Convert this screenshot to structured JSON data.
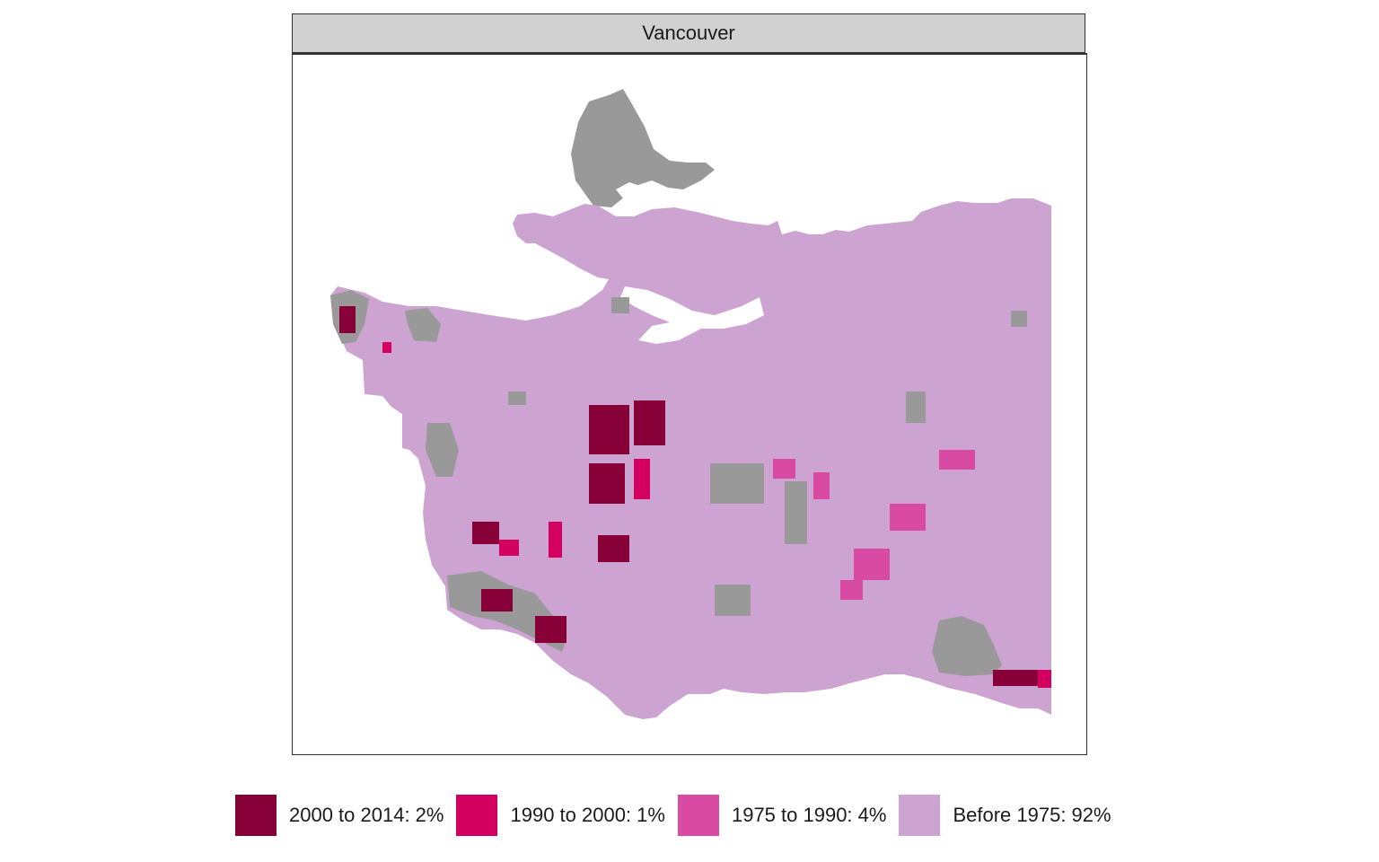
{
  "panel": {
    "title": "Vancouver"
  },
  "map": {
    "background_color": "#999999"
  },
  "legend": {
    "items": [
      {
        "label": "2000 to 2014: 2%",
        "color": "#870038",
        "key": "2000-2014",
        "share": 0.02
      },
      {
        "label": "1990 to 2000: 1%",
        "color": "#d3005f",
        "key": "1990-2000",
        "share": 0.01
      },
      {
        "label": "1975 to 1990: 4%",
        "color": "#d94aa3",
        "key": "1975-1990",
        "share": 0.04
      },
      {
        "label": "Before 1975: 92%",
        "color": "#cca3d1",
        "key": "before-1975",
        "share": 0.92
      }
    ]
  }
}
